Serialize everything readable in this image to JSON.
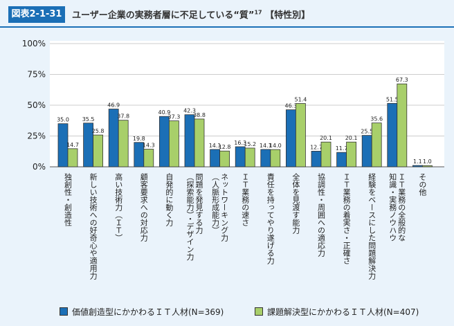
{
  "header": {
    "figure_number": "図表2-1-31",
    "title": "ユーザー企業の実務者層に不足している“質”",
    "title_sup": "17",
    "title_suffix": "【特性別】"
  },
  "chart_data": {
    "type": "bar",
    "ylim": [
      0,
      100
    ],
    "yticks": [
      "0%",
      "25%",
      "50%",
      "75%",
      "100%"
    ],
    "ytick_values": [
      0,
      25,
      50,
      75,
      100
    ],
    "categories": [
      "独創性・創造性",
      "新しい技術への好奇心や適用力",
      "高い技術力（ＩＴ）",
      "顧客要求への対応力",
      "自発的に動く力",
      "問題を発見する力（探索能力）・デザイン力",
      "ネットワーキング力（人脈形成能力）",
      "ＩＴ業務の速さ",
      "責任を持ってやり遂げる力",
      "全体を見渡す能力",
      "協調性・周囲への適応力",
      "ＩＴ業務の着実さ・正確さ",
      "経験をベースにした問題解決力",
      "ＩＴ業務の全般的な知識・実務ノウハウ",
      "その他"
    ],
    "category_lines": [
      [
        "独創性・創造性"
      ],
      [
        "新しい技術への好奇心や適用力"
      ],
      [
        "高い技術力（ＩＴ）"
      ],
      [
        "顧客要求への対応力"
      ],
      [
        "自発的に動く力"
      ],
      [
        "問題を発見する力",
        "（探索能力）・デザイン力"
      ],
      [
        "ネットワーキング力",
        "（人脈形成能力）"
      ],
      [
        "ＩＴ業務の速さ"
      ],
      [
        "責任を持ってやり遂げる力"
      ],
      [
        "全体を見渡す能力"
      ],
      [
        "協調性・周囲への適応力"
      ],
      [
        "ＩＴ業務の着実さ・正確さ"
      ],
      [
        "経験をベースにした問題解決力"
      ],
      [
        "ＩＴ業務の全般的な",
        "知識・実務ノウハウ"
      ],
      [
        "その他"
      ]
    ],
    "series": [
      {
        "name": "価値創造型にかかわるＩＴ人材(N=369)",
        "color": "#1b6fb6",
        "values": [
          35.0,
          35.5,
          46.9,
          19.8,
          40.9,
          42.3,
          14.1,
          16.3,
          14.1,
          46.3,
          12.7,
          11.7,
          25.5,
          51.5,
          1.1
        ]
      },
      {
        "name": "課題解決型にかかわるＩＴ人材(N=407)",
        "color": "#a8cf6a",
        "values": [
          14.7,
          25.8,
          37.8,
          14.3,
          37.3,
          38.8,
          12.8,
          15.2,
          14.0,
          51.4,
          20.1,
          20.1,
          35.6,
          67.3,
          1.0
        ]
      }
    ]
  }
}
